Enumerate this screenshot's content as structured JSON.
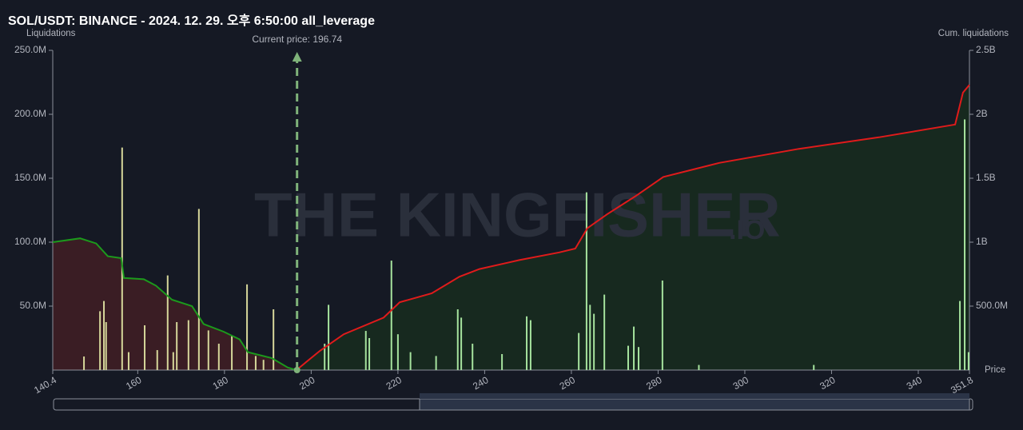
{
  "chart_data": {
    "type": "bar",
    "title": "SOL/USDT: BINANCE - 2024. 12. 29. 오후 6:50:00 all_leverage",
    "y_label": "Liquidations",
    "y2_label": "Cum. liquidations",
    "x_label": "Price",
    "watermark": [
      "THE KINGFISHER",
      ".IO"
    ],
    "current_price": {
      "value": 196.74,
      "label": "Current price: 196.74"
    },
    "xlim": [
      140.4,
      351.8
    ],
    "xticks": [
      140.4,
      160,
      180,
      200,
      220,
      240,
      260,
      280,
      300,
      320,
      340,
      351.8
    ],
    "ylim": [
      0,
      250000000
    ],
    "yticks": [
      {
        "value": 50000000,
        "label": "50.0M"
      },
      {
        "value": 100000000,
        "label": "100.0M"
      },
      {
        "value": 150000000,
        "label": "150.0M"
      },
      {
        "value": 200000000,
        "label": "200.0M"
      },
      {
        "value": 250000000,
        "label": "250.0M"
      }
    ],
    "y2lim": [
      0,
      2500000000
    ],
    "y2ticks": [
      {
        "value": 500000000,
        "label": "500.0M"
      },
      {
        "value": 1000000000,
        "label": "1B"
      },
      {
        "value": 1500000000,
        "label": "1.5B"
      },
      {
        "value": 2000000000,
        "label": "2B"
      },
      {
        "value": 2500000000,
        "label": "2.5B"
      }
    ],
    "series": [
      {
        "type": "bar",
        "color": "#d6d79a",
        "x": [
          147.6,
          151.3,
          152.2,
          152.7,
          156.4,
          157.9,
          161.6,
          164.5,
          166.9,
          168.2,
          169.0,
          171.7,
          174.1,
          176.3,
          178.7,
          181.7,
          185.2,
          187.2,
          189.0,
          191.3
        ],
        "values": [
          10600000,
          46000000,
          54000000,
          37500000,
          174000000,
          14000000,
          35000000,
          15600000,
          74000000,
          14000000,
          37500000,
          39000000,
          126000000,
          31000000,
          20600000,
          27000000,
          67000000,
          11000000,
          8000000,
          47500000
        ]
      },
      {
        "type": "bar",
        "color": "#a6e39e",
        "x": [
          203.1,
          204.0,
          212.6,
          213.4,
          218.5,
          220.0,
          222.9,
          228.8,
          233.8,
          234.6,
          237.2,
          244.0,
          249.7,
          250.6,
          261.7,
          263.5,
          264.3,
          265.2,
          267.6,
          273.1,
          274.4,
          275.5,
          281.0,
          289.4,
          315.9,
          349.6,
          350.7,
          351.6
        ],
        "values": [
          20600000,
          51000000,
          30600000,
          25000000,
          85600000,
          28000000,
          14000000,
          11000000,
          47500000,
          41000000,
          20600000,
          12500000,
          42000000,
          39000000,
          29000000,
          139000000,
          51000000,
          44000000,
          59000000,
          19000000,
          34000000,
          18000000,
          70000000,
          4000000,
          4000000,
          54000000,
          196000000,
          14000000
        ]
      },
      {
        "type": "area",
        "axis": "y2",
        "color": "#1c9a1c",
        "fill": "#3a1d24",
        "x": [
          140.4,
          146.7,
          150.4,
          153.1,
          156.2,
          156.8,
          161.4,
          164.2,
          167.9,
          172.5,
          175.2,
          179.8,
          183.5,
          185.4,
          190.9,
          194.6,
          196.6
        ],
        "values": [
          1000000000,
          1030000000,
          990000000,
          890000000,
          875000000,
          720000000,
          710000000,
          660000000,
          550000000,
          500000000,
          360000000,
          300000000,
          240000000,
          140000000,
          94000000,
          20000000,
          0
        ]
      },
      {
        "type": "area",
        "axis": "y2",
        "color": "#e01b1b",
        "fill": "#17291f",
        "x": [
          196.6,
          202.0,
          207.5,
          216.7,
          220.4,
          227.8,
          234.2,
          238.8,
          248.0,
          257.2,
          260.9,
          263.7,
          268.3,
          274.8,
          281.2,
          294.1,
          312.5,
          330.9,
          348.5,
          350.3,
          351.8
        ],
        "values": [
          0,
          150000000,
          280000000,
          410000000,
          530000000,
          600000000,
          730000000,
          790000000,
          860000000,
          920000000,
          950000000,
          1110000000,
          1220000000,
          1360000000,
          1510000000,
          1620000000,
          1730000000,
          1820000000,
          1920000000,
          2170000000,
          2230000000
        ]
      }
    ]
  }
}
